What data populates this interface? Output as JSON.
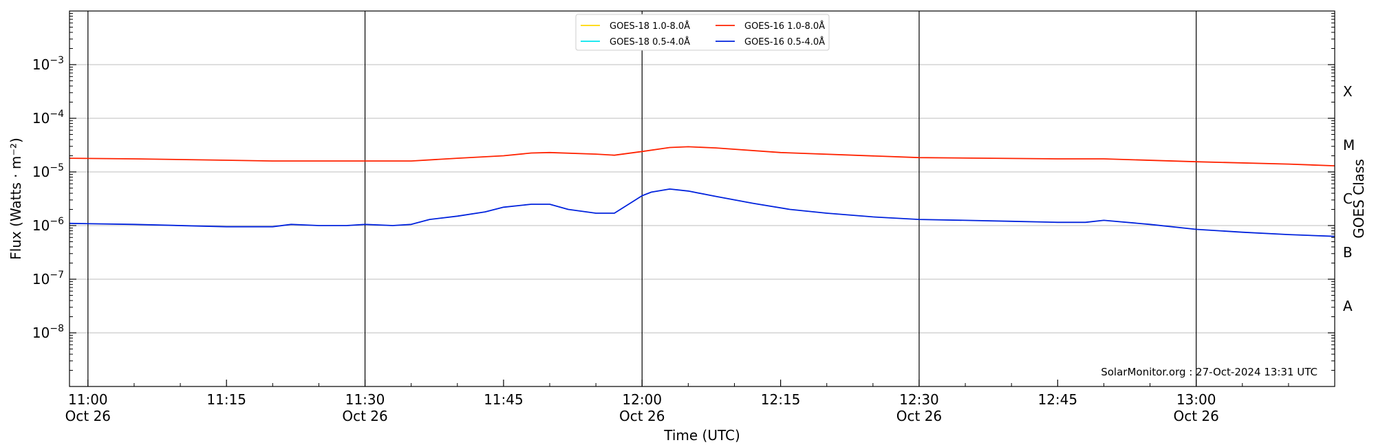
{
  "chart_data": {
    "type": "line",
    "xlabel": "Time (UTC)",
    "ylabel": "Flux (Watts · m⁻²)",
    "y2label": "GOES Class",
    "yscale": "log",
    "ylim": [
      1e-09,
      0.01
    ],
    "xlim": [
      "10:58",
      "13:15"
    ],
    "x_ticks": [
      {
        "t": "11:00",
        "label": "11:00",
        "sub": "Oct 26"
      },
      {
        "t": "11:15",
        "label": "11:15",
        "sub": ""
      },
      {
        "t": "11:30",
        "label": "11:30",
        "sub": "Oct 26"
      },
      {
        "t": "11:45",
        "label": "11:45",
        "sub": ""
      },
      {
        "t": "12:00",
        "label": "12:00",
        "sub": "Oct 26"
      },
      {
        "t": "12:15",
        "label": "12:15",
        "sub": ""
      },
      {
        "t": "12:30",
        "label": "12:30",
        "sub": "Oct 26"
      },
      {
        "t": "12:45",
        "label": "12:45",
        "sub": ""
      },
      {
        "t": "13:00",
        "label": "13:00",
        "sub": "Oct 26"
      }
    ],
    "vertical_lines": [
      "11:00",
      "11:30",
      "12:00",
      "12:30",
      "13:00"
    ],
    "y_ticks": [
      {
        "value": 0.001,
        "base": "10",
        "exp": "−3"
      },
      {
        "value": 0.0001,
        "base": "10",
        "exp": "−4"
      },
      {
        "value": 1e-05,
        "base": "10",
        "exp": "−5"
      },
      {
        "value": 1e-06,
        "base": "10",
        "exp": "−6"
      },
      {
        "value": 1e-07,
        "base": "10",
        "exp": "−7"
      },
      {
        "value": 1e-08,
        "base": "10",
        "exp": "−8"
      }
    ],
    "goes_classes": [
      {
        "label": "X",
        "value": 0.000316
      },
      {
        "label": "M",
        "value": 3.16e-05
      },
      {
        "label": "C",
        "value": 3.16e-06
      },
      {
        "label": "B",
        "value": 3.16e-07
      },
      {
        "label": "A",
        "value": 3.16e-08
      }
    ],
    "grid": true,
    "legend_position": "top-center",
    "legend": [
      {
        "label": "GOES-18 1.0-8.0Å",
        "color": "#ffd700"
      },
      {
        "label": "GOES-18 0.5-4.0Å",
        "color": "#00e5ee"
      },
      {
        "label": "GOES-16 1.0-8.0Å",
        "color": "#ff2200"
      },
      {
        "label": "GOES-16 0.5-4.0Å",
        "color": "#0022dd"
      }
    ],
    "series": [
      {
        "name": "GOES-16 1.0-8.0Å",
        "color": "#ff2200",
        "x": [
          "10:58",
          "11:05",
          "11:15",
          "11:20",
          "11:30",
          "11:35",
          "11:40",
          "11:45",
          "11:48",
          "11:50",
          "11:55",
          "11:57",
          "12:00",
          "12:03",
          "12:05",
          "12:08",
          "12:15",
          "12:30",
          "12:45",
          "12:50",
          "13:00",
          "13:10",
          "13:15"
        ],
        "y": [
          1.8e-05,
          1.75e-05,
          1.65e-05,
          1.6e-05,
          1.6e-05,
          1.6e-05,
          1.8e-05,
          2e-05,
          2.25e-05,
          2.3e-05,
          2.15e-05,
          2.05e-05,
          2.4e-05,
          2.85e-05,
          2.95e-05,
          2.8e-05,
          2.3e-05,
          1.85e-05,
          1.75e-05,
          1.75e-05,
          1.55e-05,
          1.4e-05,
          1.3e-05
        ]
      },
      {
        "name": "GOES-16 0.5-4.0Å",
        "color": "#0022dd",
        "x": [
          "10:58",
          "11:05",
          "11:15",
          "11:20",
          "11:22",
          "11:25",
          "11:28",
          "11:30",
          "11:33",
          "11:35",
          "11:37",
          "11:40",
          "11:43",
          "11:45",
          "11:48",
          "11:50",
          "11:52",
          "11:55",
          "11:57",
          "11:59",
          "12:00",
          "12:01",
          "12:03",
          "12:05",
          "12:08",
          "12:12",
          "12:16",
          "12:20",
          "12:25",
          "12:30",
          "12:35",
          "12:40",
          "12:45",
          "12:48",
          "12:50",
          "12:55",
          "13:00",
          "13:05",
          "13:10",
          "13:15"
        ],
        "y": [
          1.1e-06,
          1.05e-06,
          9.5e-07,
          9.5e-07,
          1.05e-06,
          1e-06,
          1e-06,
          1.05e-06,
          1e-06,
          1.05e-06,
          1.3e-06,
          1.5e-06,
          1.8e-06,
          2.2e-06,
          2.5e-06,
          2.5e-06,
          2e-06,
          1.7e-06,
          1.7e-06,
          2.8e-06,
          3.6e-06,
          4.2e-06,
          4.8e-06,
          4.4e-06,
          3.5e-06,
          2.6e-06,
          2e-06,
          1.7e-06,
          1.45e-06,
          1.3e-06,
          1.25e-06,
          1.2e-06,
          1.15e-06,
          1.15e-06,
          1.25e-06,
          1.05e-06,
          8.5e-07,
          7.5e-07,
          6.8e-07,
          6.3e-07
        ]
      }
    ]
  },
  "watermark": "SolarMonitor.org : 27-Oct-2024 13:31 UTC"
}
